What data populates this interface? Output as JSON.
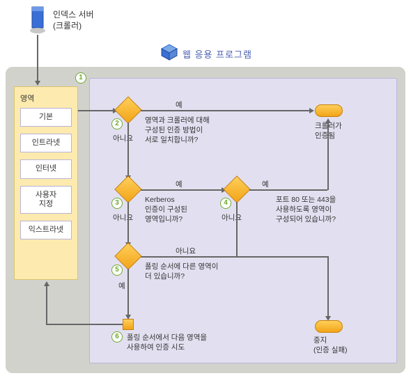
{
  "header": {
    "server_title": "인덱스 서버",
    "server_sub": "(크롤러)",
    "app_title": "웹 응용 프로그램"
  },
  "panel": {
    "title": "영역",
    "zones": [
      "기본",
      "인트라넷",
      "인터넷",
      "사용자\n지정",
      "익스트라넷"
    ]
  },
  "steps": {
    "s1": "1",
    "s2": "2",
    "s3": "3",
    "s4": "4",
    "s5": "5",
    "s6": "6"
  },
  "labels": {
    "yes": "예",
    "no": "아니요",
    "q2": "영역과 크롤러에 대해\n구성된 인증 방법이\n서로 일치합니까?",
    "q3": "Kerberos\n인증이 구성된\n영역입니까?",
    "q4": "포트 80 또는 443을\n사용하도록 영역이\n구성되어 있습니까?",
    "q5": "폴링 순서에 다른 영역이\n더 있습니까?",
    "s6_text": "폴링 순서에서 다음 영역을\n사용하여 인증 시도",
    "authed": "크롤러가\n인증됨",
    "stop": "중지\n(인증 실패)"
  },
  "style": {
    "outer_bg": "#d2d2cc",
    "inner_bg": "#e2e0f0",
    "panel_bg": "#fdeaae",
    "accent": "#f2a418",
    "step_green": "#6ea82f",
    "title_color": "#4a5db0"
  },
  "type": "flowchart"
}
